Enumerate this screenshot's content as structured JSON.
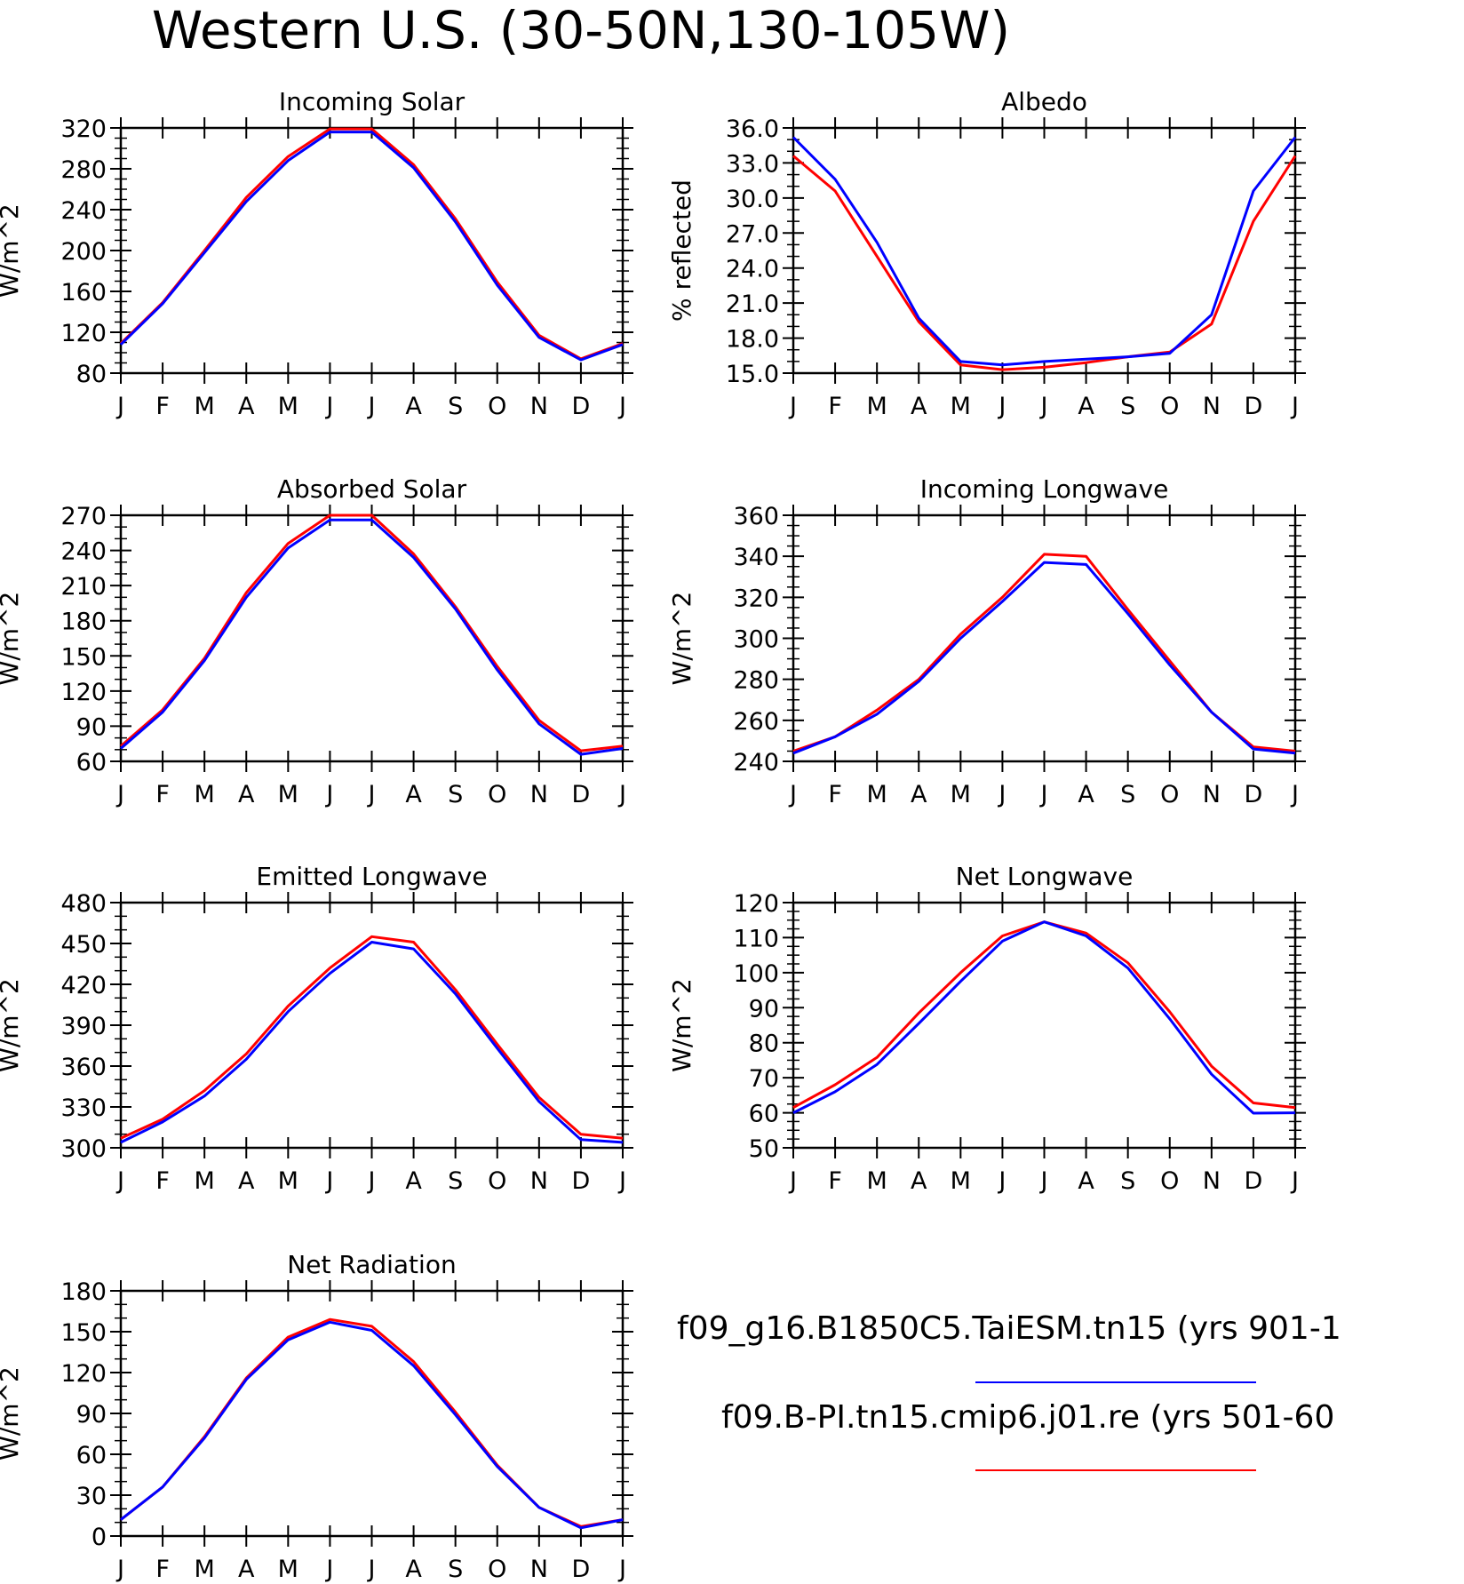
{
  "title": "Western U.S. (30-50N,130-105W)",
  "months": [
    "J",
    "F",
    "M",
    "A",
    "M",
    "J",
    "J",
    "A",
    "S",
    "O",
    "N",
    "D",
    "J"
  ],
  "legend": [
    {
      "label": "f09_g16.B1850C5.TaiESM.tn15 (yrs 901-1",
      "color": "#0000ff"
    },
    {
      "label": "f09.B-PI.tn15.cmip6.j01.re (yrs 501-60",
      "color": "#ff0000"
    }
  ],
  "chart_data": [
    {
      "type": "line",
      "title": "Incoming Solar",
      "ylabel": "W/m^2",
      "ylim": [
        80,
        320
      ],
      "yticks": [
        80,
        120,
        160,
        200,
        240,
        280,
        320
      ],
      "ytick_labels": [
        "80",
        "120",
        "160",
        "200",
        "240",
        "280",
        "320"
      ],
      "minor": 4,
      "categories": [
        "J",
        "F",
        "M",
        "A",
        "M",
        "J",
        "J",
        "A",
        "S",
        "O",
        "N",
        "D",
        "J"
      ],
      "series": [
        {
          "color": "#ff0000",
          "values": [
            109,
            149,
            200,
            252,
            292,
            319,
            319,
            284,
            231,
            169,
            117,
            94,
            109
          ]
        },
        {
          "color": "#0000ff",
          "values": [
            108,
            148,
            198,
            248,
            288,
            316,
            316,
            281,
            228,
            166,
            115,
            93,
            108
          ]
        }
      ]
    },
    {
      "type": "line",
      "title": "Albedo",
      "ylabel": "% reflected",
      "ylim": [
        15,
        36
      ],
      "yticks": [
        15,
        18,
        21,
        24,
        27,
        30,
        33,
        36
      ],
      "ytick_labels": [
        "15.0",
        "18.0",
        "21.0",
        "24.0",
        "27.0",
        "30.0",
        "33.0",
        "36.0"
      ],
      "minor": 3,
      "categories": [
        "J",
        "F",
        "M",
        "A",
        "M",
        "J",
        "J",
        "A",
        "S",
        "O",
        "N",
        "D",
        "J"
      ],
      "series": [
        {
          "color": "#ff0000",
          "values": [
            33.6,
            30.6,
            25.0,
            19.4,
            15.7,
            15.3,
            15.5,
            15.9,
            16.4,
            16.8,
            19.2,
            28.0,
            33.6
          ]
        },
        {
          "color": "#0000ff",
          "values": [
            35.2,
            31.6,
            26.2,
            19.7,
            16.0,
            15.7,
            16.0,
            16.2,
            16.4,
            16.7,
            20.0,
            30.6,
            35.2
          ]
        }
      ]
    },
    {
      "type": "line",
      "title": "Absorbed Solar",
      "ylabel": "W/m^2",
      "ylim": [
        60,
        270
      ],
      "yticks": [
        60,
        90,
        120,
        150,
        180,
        210,
        240,
        270
      ],
      "ytick_labels": [
        "60",
        "90",
        "120",
        "150",
        "180",
        "210",
        "240",
        "270"
      ],
      "minor": 3,
      "categories": [
        "J",
        "F",
        "M",
        "A",
        "M",
        "J",
        "J",
        "A",
        "S",
        "O",
        "N",
        "D",
        "J"
      ],
      "series": [
        {
          "color": "#ff0000",
          "values": [
            73,
            104,
            148,
            204,
            246,
            270,
            270,
            237,
            192,
            141,
            95,
            69,
            73
          ]
        },
        {
          "color": "#0000ff",
          "values": [
            71,
            102,
            146,
            200,
            242,
            266,
            266,
            234,
            190,
            138,
            92,
            66,
            71
          ]
        }
      ]
    },
    {
      "type": "line",
      "title": "Incoming Longwave",
      "ylabel": "W/m^2",
      "ylim": [
        240,
        360
      ],
      "yticks": [
        240,
        260,
        280,
        300,
        320,
        340,
        360
      ],
      "ytick_labels": [
        "240",
        "260",
        "280",
        "300",
        "320",
        "340",
        "360"
      ],
      "minor": 4,
      "categories": [
        "J",
        "F",
        "M",
        "A",
        "M",
        "J",
        "J",
        "A",
        "S",
        "O",
        "N",
        "D",
        "J"
      ],
      "series": [
        {
          "color": "#ff0000",
          "values": [
            245,
            252,
            265,
            280,
            302,
            320,
            341,
            340,
            314,
            289,
            264,
            247,
            245
          ]
        },
        {
          "color": "#0000ff",
          "values": [
            244,
            252,
            263,
            279,
            300,
            318,
            337,
            336,
            312,
            287,
            264,
            246,
            244
          ]
        }
      ]
    },
    {
      "type": "line",
      "title": "Emitted Longwave",
      "ylabel": "W/m^2",
      "ylim": [
        300,
        480
      ],
      "yticks": [
        300,
        330,
        360,
        390,
        420,
        450,
        480
      ],
      "ytick_labels": [
        "300",
        "330",
        "360",
        "390",
        "420",
        "450",
        "480"
      ],
      "minor": 3,
      "categories": [
        "J",
        "F",
        "M",
        "A",
        "M",
        "J",
        "J",
        "A",
        "S",
        "O",
        "N",
        "D",
        "J"
      ],
      "series": [
        {
          "color": "#ff0000",
          "values": [
            307,
            321,
            342,
            369,
            404,
            432,
            455,
            451,
            416,
            376,
            337,
            310,
            307
          ]
        },
        {
          "color": "#0000ff",
          "values": [
            304,
            319,
            338,
            365,
            400,
            428,
            451,
            446,
            413,
            373,
            334,
            306,
            304
          ]
        }
      ]
    },
    {
      "type": "line",
      "title": "Net Longwave",
      "ylabel": "W/m^2",
      "ylim": [
        50,
        120
      ],
      "yticks": [
        50,
        60,
        70,
        80,
        90,
        100,
        110,
        120
      ],
      "ytick_labels": [
        "50",
        "60",
        "70",
        "80",
        "90",
        "100",
        "110",
        "120"
      ],
      "minor": 4,
      "categories": [
        "J",
        "F",
        "M",
        "A",
        "M",
        "J",
        "J",
        "A",
        "S",
        "O",
        "N",
        "D",
        "J"
      ],
      "series": [
        {
          "color": "#ff0000",
          "values": [
            61.5,
            68.0,
            75.8,
            88.5,
            100.0,
            110.5,
            114.5,
            111.3,
            102.8,
            88.8,
            73.3,
            62.8,
            61.5
          ]
        },
        {
          "color": "#0000ff",
          "values": [
            60.0,
            66.0,
            73.8,
            85.5,
            97.5,
            109.0,
            114.5,
            110.5,
            101.3,
            86.8,
            71.0,
            59.9,
            60.0
          ]
        }
      ]
    },
    {
      "type": "line",
      "title": "Net Radiation",
      "ylabel": "W/m^2",
      "ylim": [
        0,
        180
      ],
      "yticks": [
        0,
        30,
        60,
        90,
        120,
        150,
        180
      ],
      "ytick_labels": [
        "0",
        "30",
        "60",
        "90",
        "120",
        "150",
        "180"
      ],
      "minor": 3,
      "categories": [
        "J",
        "F",
        "M",
        "A",
        "M",
        "J",
        "J",
        "A",
        "S",
        "O",
        "N",
        "D",
        "J"
      ],
      "series": [
        {
          "color": "#ff0000",
          "values": [
            12,
            36,
            73,
            116,
            146,
            159,
            154,
            128,
            91,
            52,
            21,
            7,
            12
          ]
        },
        {
          "color": "#0000ff",
          "values": [
            12,
            36,
            72,
            115,
            144,
            157,
            151,
            125,
            89,
            51,
            21,
            6,
            12
          ]
        }
      ]
    }
  ]
}
